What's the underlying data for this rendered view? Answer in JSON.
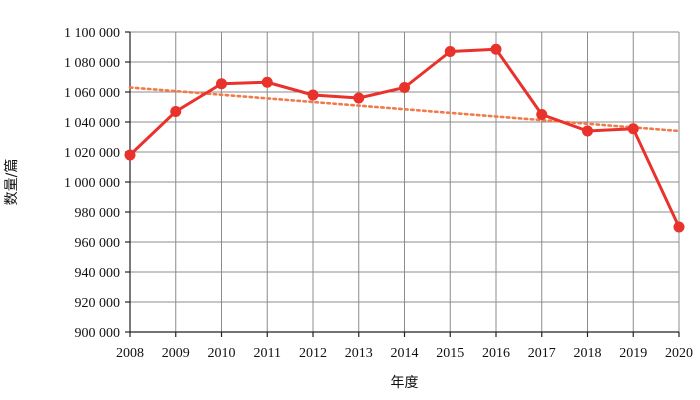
{
  "chart_data": {
    "type": "line",
    "title": "",
    "xlabel": "年度",
    "ylabel": "数量/篇",
    "x": [
      "2008",
      "2009",
      "2010",
      "2011",
      "2012",
      "2013",
      "2014",
      "2015",
      "2016",
      "2017",
      "2018",
      "2019",
      "2020"
    ],
    "series": [
      {
        "color": "#e8322b",
        "marker": "circle",
        "values": [
          1018000,
          1047000,
          1065500,
          1066500,
          1058000,
          1056000,
          1063000,
          1087000,
          1088500,
          1045000,
          1034000,
          1035500,
          970000
        ]
      }
    ],
    "trendline": {
      "type": "linear",
      "style": "dotted",
      "color": "#f07a4a",
      "start": 1063000,
      "end": 1034000
    },
    "ylim": [
      900000,
      1100000
    ],
    "yticks": [
      900000,
      920000,
      940000,
      960000,
      980000,
      1000000,
      1020000,
      1040000,
      1060000,
      1080000,
      1100000
    ],
    "ytick_labels": [
      "900 000",
      "920 000",
      "940 000",
      "960 000",
      "980 000",
      "1 000 000",
      "1 020 000",
      "1 040 000",
      "1 060 000",
      "1 080 000",
      "1 100 000"
    ],
    "grid": true,
    "legend": "none"
  }
}
